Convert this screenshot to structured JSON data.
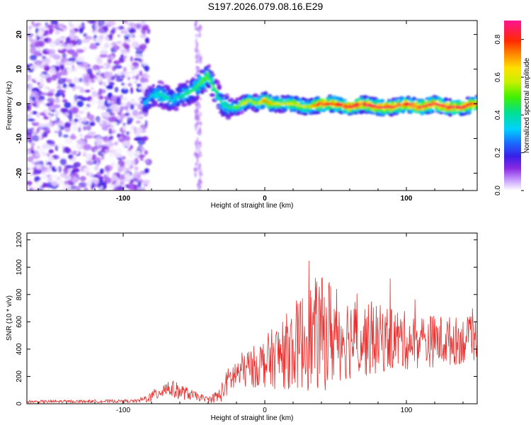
{
  "chart_data": [
    {
      "type": "heatmap",
      "title": "S197.2026.079.08.16.E29",
      "xlabel": "Height of straight line (km)",
      "ylabel": "Frequency (Hz)",
      "xlim": [
        -168,
        150
      ],
      "ylim": [
        -25,
        24
      ],
      "x_ticks": [
        "-100",
        "0",
        "100"
      ],
      "y_ticks": [
        "-20",
        "-10",
        "0",
        "10",
        "20"
      ],
      "colorbar": {
        "label": "Normalized spectral amplitude",
        "range": [
          0.0,
          0.9
        ],
        "ticks": [
          "0.0",
          "0.2",
          "0.4",
          "0.6",
          "0.8"
        ]
      },
      "ridge": {
        "x": [
          -85,
          -80,
          -75,
          -70,
          -65,
          -60,
          -55,
          -50,
          -45,
          -40,
          -35,
          -30,
          -25,
          -20,
          -15,
          -10,
          -5,
          0,
          5,
          10,
          20,
          30,
          40,
          50,
          60,
          70,
          80,
          90,
          100,
          110,
          120,
          130,
          140,
          148
        ],
        "freq": [
          0,
          2,
          3,
          2,
          1,
          2,
          3,
          4,
          6,
          8,
          4,
          0,
          -1,
          -1,
          0,
          1,
          0,
          1,
          0,
          0,
          0,
          -1,
          0,
          0,
          -1,
          0,
          -1,
          -1,
          0,
          -1,
          0,
          -1,
          -1,
          0
        ],
        "amp": [
          0.3,
          0.35,
          0.4,
          0.4,
          0.35,
          0.4,
          0.45,
          0.45,
          0.5,
          0.5,
          0.45,
          0.4,
          0.45,
          0.5,
          0.6,
          0.6,
          0.55,
          0.75,
          0.7,
          0.6,
          0.65,
          0.6,
          0.85,
          0.8,
          0.85,
          0.85,
          0.85,
          0.85,
          0.85,
          0.85,
          0.85,
          0.85,
          0.85,
          0.8
        ]
      }
    },
    {
      "type": "line",
      "xlabel": "Height of straight line (km)",
      "ylabel": "SNR (10 * v/v)",
      "xlim": [
        -168,
        150
      ],
      "ylim": [
        0,
        1250
      ],
      "x_ticks": [
        "-100",
        "0",
        "100"
      ],
      "y_ticks": [
        "0",
        "200",
        "400",
        "600",
        "800",
        "1000",
        "1200"
      ],
      "color": "#e8302e",
      "envelope": {
        "x": [
          -168,
          -90,
          -80,
          -70,
          -60,
          -50,
          -40,
          -32,
          -25,
          -15,
          -5,
          5,
          15,
          25,
          35,
          45,
          55,
          65,
          75,
          85,
          95,
          105,
          115,
          125,
          135,
          145,
          150
        ],
        "mean": [
          15,
          20,
          50,
          120,
          90,
          60,
          30,
          60,
          180,
          250,
          280,
          330,
          380,
          450,
          500,
          520,
          500,
          480,
          460,
          480,
          470,
          450,
          460,
          460,
          460,
          470,
          480
        ],
        "amp": [
          10,
          12,
          40,
          70,
          60,
          35,
          20,
          60,
          110,
          140,
          160,
          220,
          280,
          350,
          420,
          420,
          330,
          300,
          260,
          250,
          230,
          200,
          200,
          190,
          180,
          170,
          160
        ]
      }
    }
  ]
}
